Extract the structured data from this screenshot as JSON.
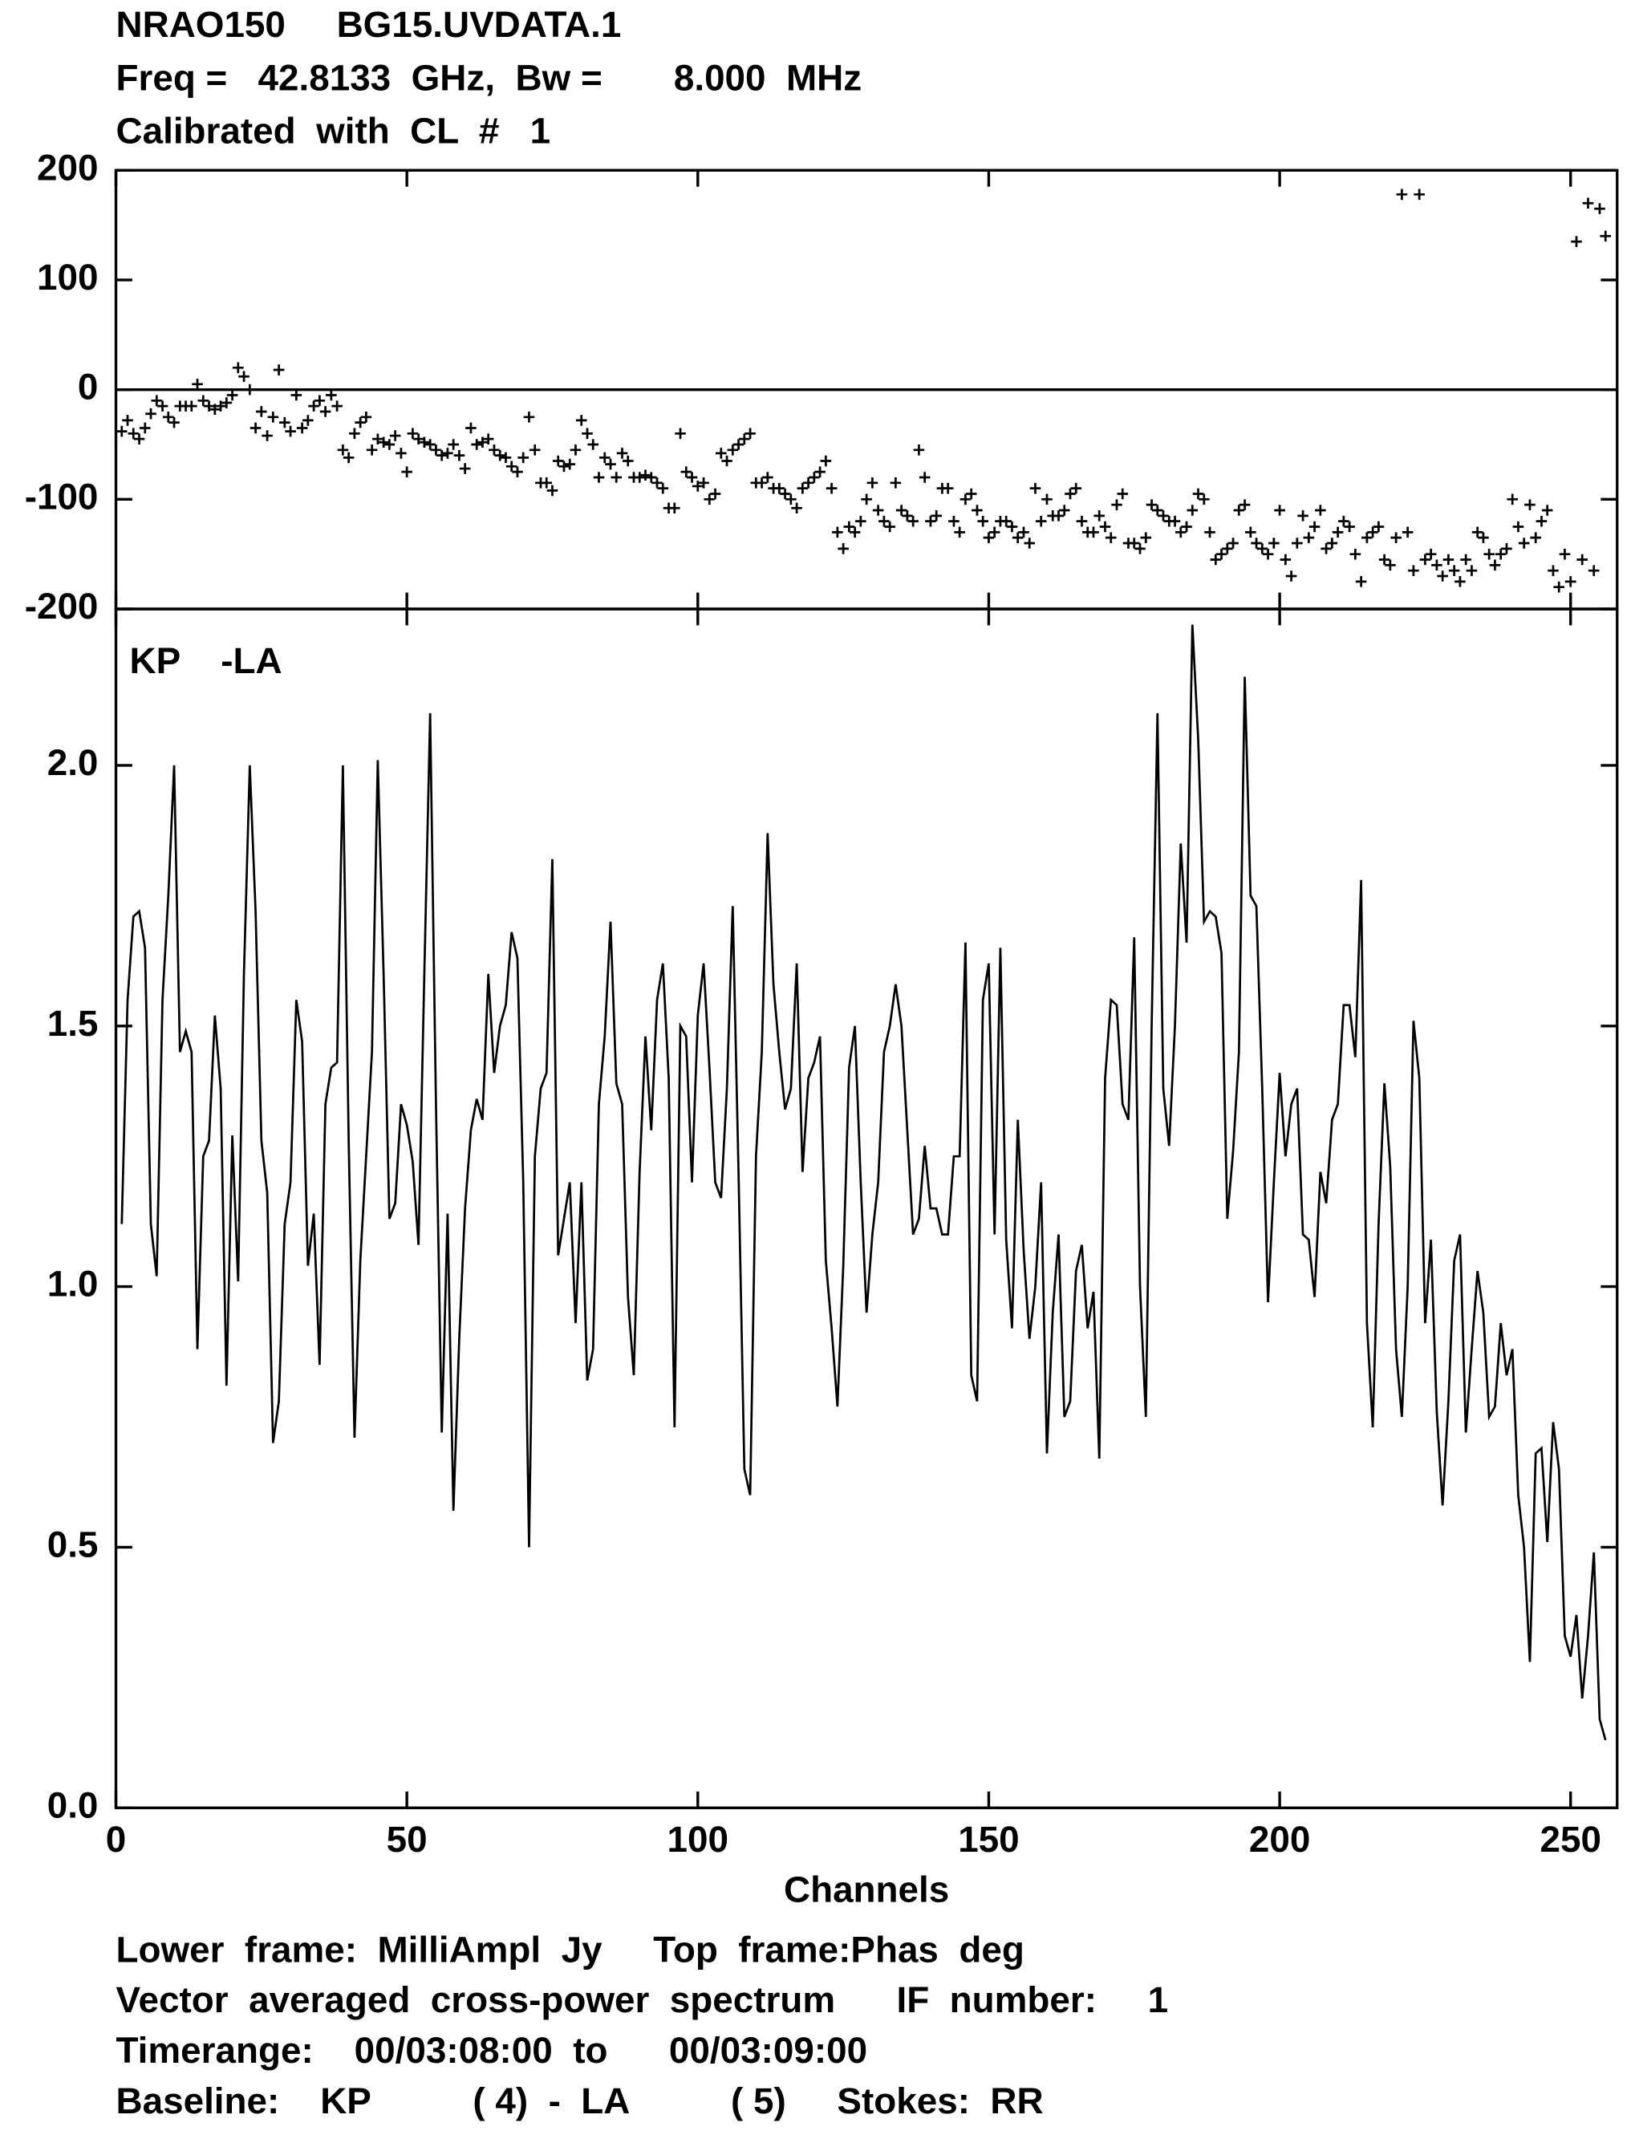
{
  "title_lines": [
    "NRAO150     BG15.UVDATA.1",
    "Freq =   42.8133  GHz,  Bw =       8.000  MHz",
    "Calibrated  with  CL  #   1"
  ],
  "footer_lines": [
    "Lower  frame:  MilliAmpl  Jy     Top  frame:Phas  deg",
    "Vector  averaged  cross-power  spectrum      IF  number:     1",
    "Timerange:    00/03:08:00  to      00/03:09:00",
    "Baseline:    KP          ( 4)  -  LA          ( 5)     Stokes:  RR"
  ],
  "chart_data": [
    {
      "type": "scatter",
      "marker": "+",
      "color": "#000000",
      "zero_line": true,
      "xlim": [
        0,
        258
      ],
      "xticks": [
        0,
        50,
        100,
        150,
        200,
        250
      ],
      "ylim": [
        -200,
        200
      ],
      "yticks": [
        -200,
        -100,
        0,
        100,
        200
      ],
      "x": [
        1,
        2,
        3,
        4,
        5,
        6,
        7,
        8,
        9,
        10,
        11,
        12,
        13,
        14,
        15,
        16,
        17,
        18,
        19,
        20,
        21,
        22,
        23,
        24,
        25,
        26,
        27,
        28,
        29,
        30,
        31,
        32,
        33,
        34,
        35,
        36,
        37,
        38,
        39,
        40,
        41,
        42,
        43,
        44,
        45,
        46,
        47,
        48,
        49,
        50,
        51,
        52,
        53,
        54,
        55,
        56,
        57,
        58,
        59,
        60,
        61,
        62,
        63,
        64,
        65,
        66,
        67,
        68,
        69,
        70,
        71,
        72,
        73,
        74,
        75,
        76,
        77,
        78,
        79,
        80,
        81,
        82,
        83,
        84,
        85,
        86,
        87,
        88,
        89,
        90,
        91,
        92,
        93,
        94,
        95,
        96,
        97,
        98,
        99,
        100,
        101,
        102,
        103,
        104,
        105,
        106,
        107,
        108,
        109,
        110,
        111,
        112,
        113,
        114,
        115,
        116,
        117,
        118,
        119,
        120,
        121,
        122,
        123,
        124,
        125,
        126,
        127,
        128,
        129,
        130,
        131,
        132,
        133,
        134,
        135,
        136,
        137,
        138,
        139,
        140,
        141,
        142,
        143,
        144,
        145,
        146,
        147,
        148,
        149,
        150,
        151,
        152,
        153,
        154,
        155,
        156,
        157,
        158,
        159,
        160,
        161,
        162,
        163,
        164,
        165,
        166,
        167,
        168,
        169,
        170,
        171,
        172,
        173,
        174,
        175,
        176,
        177,
        178,
        179,
        180,
        181,
        182,
        183,
        184,
        185,
        186,
        187,
        188,
        189,
        190,
        191,
        192,
        193,
        194,
        195,
        196,
        197,
        198,
        199,
        200,
        201,
        202,
        203,
        204,
        205,
        206,
        207,
        208,
        209,
        210,
        211,
        212,
        213,
        214,
        215,
        216,
        217,
        218,
        219,
        220,
        221,
        222,
        223,
        224,
        225,
        226,
        227,
        228,
        229,
        230,
        231,
        232,
        233,
        234,
        235,
        236,
        237,
        238,
        239,
        240,
        241,
        242,
        243,
        244,
        245,
        246,
        247,
        248,
        249,
        250,
        251,
        252,
        253,
        254,
        255,
        256
      ],
      "values": [
        -38,
        -28,
        -40,
        -45,
        -35,
        -22,
        -10,
        -15,
        -25,
        -30,
        -15,
        -15,
        -15,
        5,
        -10,
        -15,
        -18,
        -15,
        -12,
        -5,
        20,
        12,
        0,
        -35,
        -20,
        -42,
        -25,
        18,
        -30,
        -38,
        -5,
        -35,
        -28,
        -15,
        -10,
        -20,
        -5,
        -15,
        -55,
        -62,
        -40,
        -30,
        -25,
        -55,
        -45,
        -48,
        -50,
        -42,
        -58,
        -75,
        -40,
        -45,
        -48,
        -50,
        -55,
        -60,
        -58,
        -50,
        -60,
        -72,
        -35,
        -50,
        -48,
        -45,
        -55,
        -60,
        -62,
        -70,
        -75,
        -62,
        -25,
        -55,
        -85,
        -85,
        -92,
        -65,
        -70,
        -68,
        -55,
        -28,
        -40,
        -50,
        -80,
        -62,
        -68,
        -80,
        -58,
        -65,
        -80,
        -80,
        -78,
        -80,
        -85,
        -90,
        -108,
        -108,
        -40,
        -75,
        -80,
        -88,
        -85,
        -100,
        -95,
        -58,
        -65,
        -55,
        -50,
        -45,
        -40,
        -85,
        -85,
        -80,
        -90,
        -90,
        -95,
        -100,
        -108,
        -90,
        -85,
        -80,
        -75,
        -65,
        -90,
        -130,
        -145,
        -125,
        -130,
        -120,
        -100,
        -85,
        -110,
        -120,
        -125,
        -85,
        -110,
        -115,
        -120,
        -55,
        -80,
        -120,
        -115,
        -90,
        -90,
        -120,
        -130,
        -100,
        -95,
        -110,
        -120,
        -135,
        -130,
        -120,
        -120,
        -125,
        -135,
        -130,
        -140,
        -90,
        -120,
        -100,
        -115,
        -115,
        -110,
        -95,
        -90,
        -120,
        -130,
        -130,
        -115,
        -125,
        -135,
        -105,
        -95,
        -140,
        -140,
        -145,
        -135,
        -105,
        -110,
        -115,
        -120,
        -120,
        -130,
        -125,
        -110,
        -95,
        -100,
        -130,
        -155,
        -150,
        -145,
        -140,
        -110,
        -105,
        -130,
        -140,
        -145,
        -150,
        -140,
        -110,
        -155,
        -170,
        -140,
        -115,
        -135,
        -125,
        -110,
        -145,
        -140,
        -130,
        -120,
        -125,
        -150,
        -175,
        -135,
        -130,
        -125,
        -155,
        -160,
        -135,
        178,
        -130,
        -165,
        178,
        -155,
        -150,
        -160,
        -170,
        -155,
        -165,
        -175,
        -155,
        -165,
        -130,
        -135,
        -150,
        -160,
        -150,
        -145,
        -100,
        -125,
        -140,
        -105,
        -135,
        -120,
        -110,
        -165,
        -180,
        -150,
        -175,
        135,
        -155,
        170,
        -165,
        165,
        140
      ]
    },
    {
      "type": "line",
      "color": "#000000",
      "label": "KP    -LA",
      "xlabel": "Channels",
      "xlim": [
        0,
        258
      ],
      "xticks": [
        0,
        50,
        100,
        150,
        200,
        250
      ],
      "ylim": [
        0,
        2.3
      ],
      "yticks": [
        {
          "value": 0,
          "label": "0.0"
        },
        0.5,
        {
          "value": 1,
          "label": "1.0"
        },
        1.5,
        {
          "value": 2,
          "label": "2.0"
        }
      ],
      "x": [
        1,
        2,
        3,
        4,
        5,
        6,
        7,
        8,
        9,
        10,
        11,
        12,
        13,
        14,
        15,
        16,
        17,
        18,
        19,
        20,
        21,
        22,
        23,
        24,
        25,
        26,
        27,
        28,
        29,
        30,
        31,
        32,
        33,
        34,
        35,
        36,
        37,
        38,
        39,
        40,
        41,
        42,
        43,
        44,
        45,
        46,
        47,
        48,
        49,
        50,
        51,
        52,
        53,
        54,
        55,
        56,
        57,
        58,
        59,
        60,
        61,
        62,
        63,
        64,
        65,
        66,
        67,
        68,
        69,
        70,
        71,
        72,
        73,
        74,
        75,
        76,
        77,
        78,
        79,
        80,
        81,
        82,
        83,
        84,
        85,
        86,
        87,
        88,
        89,
        90,
        91,
        92,
        93,
        94,
        95,
        96,
        97,
        98,
        99,
        100,
        101,
        102,
        103,
        104,
        105,
        106,
        107,
        108,
        109,
        110,
        111,
        112,
        113,
        114,
        115,
        116,
        117,
        118,
        119,
        120,
        121,
        122,
        123,
        124,
        125,
        126,
        127,
        128,
        129,
        130,
        131,
        132,
        133,
        134,
        135,
        136,
        137,
        138,
        139,
        140,
        141,
        142,
        143,
        144,
        145,
        146,
        147,
        148,
        149,
        150,
        151,
        152,
        153,
        154,
        155,
        156,
        157,
        158,
        159,
        160,
        161,
        162,
        163,
        164,
        165,
        166,
        167,
        168,
        169,
        170,
        171,
        172,
        173,
        174,
        175,
        176,
        177,
        178,
        179,
        180,
        181,
        182,
        183,
        184,
        185,
        186,
        187,
        188,
        189,
        190,
        191,
        192,
        193,
        194,
        195,
        196,
        197,
        198,
        199,
        200,
        201,
        202,
        203,
        204,
        205,
        206,
        207,
        208,
        209,
        210,
        211,
        212,
        213,
        214,
        215,
        216,
        217,
        218,
        219,
        220,
        221,
        222,
        223,
        224,
        225,
        226,
        227,
        228,
        229,
        230,
        231,
        232,
        233,
        234,
        235,
        236,
        237,
        238,
        239,
        240,
        241,
        242,
        243,
        244,
        245,
        246,
        247,
        248,
        249,
        250,
        251,
        252,
        253,
        254,
        255,
        256
      ],
      "values": [
        1.12,
        1.55,
        1.71,
        1.72,
        1.65,
        1.12,
        1.02,
        1.55,
        1.75,
        2.0,
        1.45,
        1.49,
        1.45,
        0.88,
        1.25,
        1.28,
        1.52,
        1.38,
        0.81,
        1.29,
        1.01,
        1.6,
        2.0,
        1.72,
        1.28,
        1.18,
        0.7,
        0.78,
        1.12,
        1.2,
        1.55,
        1.47,
        1.04,
        1.14,
        0.85,
        1.35,
        1.42,
        1.43,
        2.0,
        1.28,
        0.71,
        1.05,
        1.25,
        1.45,
        2.01,
        1.6,
        1.13,
        1.16,
        1.35,
        1.31,
        1.24,
        1.08,
        1.6,
        2.1,
        1.35,
        0.72,
        1.14,
        0.57,
        0.9,
        1.15,
        1.3,
        1.36,
        1.32,
        1.6,
        1.41,
        1.5,
        1.54,
        1.68,
        1.63,
        1.2,
        0.5,
        1.25,
        1.38,
        1.41,
        1.82,
        1.06,
        1.13,
        1.2,
        0.93,
        1.2,
        0.82,
        0.88,
        1.35,
        1.48,
        1.7,
        1.39,
        1.35,
        0.98,
        0.83,
        1.22,
        1.48,
        1.3,
        1.55,
        1.62,
        1.4,
        0.73,
        1.5,
        1.48,
        1.2,
        1.52,
        1.62,
        1.42,
        1.2,
        1.17,
        1.38,
        1.73,
        1.22,
        0.65,
        0.6,
        1.25,
        1.45,
        1.87,
        1.58,
        1.45,
        1.34,
        1.38,
        1.62,
        1.22,
        1.4,
        1.43,
        1.48,
        1.05,
        0.92,
        0.77,
        1.04,
        1.42,
        1.5,
        1.2,
        0.95,
        1.1,
        1.2,
        1.45,
        1.5,
        1.58,
        1.5,
        1.3,
        1.1,
        1.13,
        1.27,
        1.15,
        1.15,
        1.1,
        1.1,
        1.25,
        1.25,
        1.66,
        0.83,
        0.78,
        1.55,
        1.62,
        1.1,
        1.65,
        1.09,
        0.92,
        1.32,
        1.07,
        0.9,
        1.0,
        1.2,
        0.68,
        0.95,
        1.1,
        0.75,
        0.78,
        1.03,
        1.08,
        0.92,
        0.99,
        0.67,
        1.4,
        1.55,
        1.54,
        1.35,
        1.32,
        1.67,
        1.0,
        0.75,
        1.5,
        2.1,
        1.38,
        1.27,
        1.5,
        1.85,
        1.66,
        2.27,
        2.05,
        1.7,
        1.72,
        1.71,
        1.64,
        1.13,
        1.26,
        1.45,
        2.17,
        1.75,
        1.73,
        1.38,
        0.97,
        1.2,
        1.41,
        1.25,
        1.35,
        1.38,
        1.1,
        1.09,
        0.98,
        1.22,
        1.16,
        1.32,
        1.35,
        1.54,
        1.54,
        1.44,
        1.78,
        0.93,
        0.73,
        1.12,
        1.39,
        1.23,
        0.88,
        0.75,
        1.0,
        1.51,
        1.4,
        0.93,
        1.09,
        0.76,
        0.58,
        0.78,
        1.05,
        1.1,
        0.72,
        0.88,
        1.03,
        0.95,
        0.75,
        0.77,
        0.93,
        0.83,
        0.88,
        0.6,
        0.5,
        0.28,
        0.68,
        0.69,
        0.51,
        0.74,
        0.65,
        0.33,
        0.29,
        0.37,
        0.21,
        0.33,
        0.49,
        0.17,
        0.13
      ]
    }
  ]
}
